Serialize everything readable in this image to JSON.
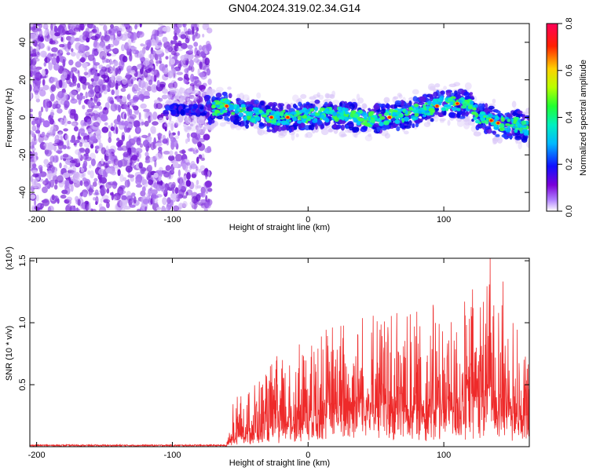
{
  "title": "GN04.2024.319.02.34.G14",
  "chart_data": [
    {
      "type": "heatmap",
      "xlabel": "Height of straight line (km)",
      "ylabel": "Frequency (Hz)",
      "xlim": [
        -205,
        163
      ],
      "ylim": [
        -50,
        50
      ],
      "x_ticks": [
        -200,
        -100,
        0,
        100
      ],
      "y_ticks": [
        -40,
        -20,
        0,
        20,
        40
      ],
      "colorbar": {
        "label": "Normalized spectral amplitude",
        "range": [
          0,
          0.8
        ],
        "ticks": [
          "0.0",
          "0.2",
          "0.4",
          "0.6",
          "0.8"
        ],
        "colors": [
          "#ffffff",
          "#7a00d8",
          "#0000ff",
          "#00d0ff",
          "#00ff60",
          "#c0ff00",
          "#ffd000",
          "#ff0000",
          "#ff0050"
        ]
      },
      "noise_region_x": [
        -205,
        -72
      ],
      "ridge": {
        "x": [
          -105,
          -90,
          -75,
          -60,
          -45,
          -30,
          -15,
          0,
          15,
          30,
          45,
          60,
          75,
          90,
          105,
          120,
          125,
          140,
          155,
          163
        ],
        "freq": [
          4,
          4,
          4,
          6,
          2,
          0,
          0,
          1,
          2,
          1,
          -1,
          0,
          2,
          5,
          8,
          6,
          1,
          -3,
          -4,
          -6
        ]
      },
      "grid": false
    },
    {
      "type": "line",
      "xlabel": "Height of straight line (km)",
      "ylabel": "SNR (10 * v/v)",
      "y_scale_label": "(x10⁴)",
      "xlim": [
        -205,
        163
      ],
      "ylim": [
        0,
        1.52
      ],
      "x_ticks": [
        -200,
        -100,
        0,
        100
      ],
      "y_ticks": [
        "0.5",
        "1.0",
        "1.5"
      ],
      "series_color": "#ee2a2a",
      "envelope": {
        "x": [
          -205,
          -60,
          -55,
          -40,
          -20,
          0,
          20,
          30,
          40,
          55,
          70,
          85,
          95,
          105,
          115,
          120,
          125,
          135,
          145,
          155,
          163
        ],
        "baseline": [
          0.01,
          0.01,
          0.05,
          0.08,
          0.12,
          0.18,
          0.22,
          0.25,
          0.26,
          0.24,
          0.22,
          0.2,
          0.22,
          0.24,
          0.24,
          0.3,
          0.3,
          0.32,
          0.26,
          0.18,
          0.16
        ],
        "peak": [
          0.02,
          0.02,
          0.4,
          0.55,
          0.75,
          0.85,
          1.0,
          1.05,
          1.2,
          1.1,
          1.1,
          1.05,
          1.2,
          1.05,
          1.1,
          1.3,
          1.45,
          1.5,
          1.3,
          0.95,
          0.8
        ]
      },
      "grid": false
    }
  ]
}
